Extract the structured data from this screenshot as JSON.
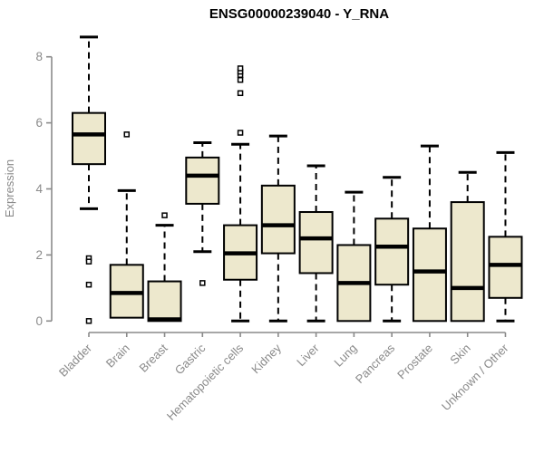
{
  "chart_data": {
    "type": "boxplot",
    "title": "ENSG00000239040 - Y_RNA",
    "ylabel": "Expression",
    "xlabel": "",
    "ylim": [
      0,
      8.7
    ],
    "yticks": [
      0,
      2,
      4,
      6,
      8
    ],
    "grid": false,
    "legend": "none",
    "colors": {
      "box_fill": "#EDE8CD",
      "box_stroke": "#000000",
      "median_color": "#000000",
      "whisker_color": "#000000",
      "outlier_stroke": "#000000",
      "axis_color": "#8A8A8A",
      "tick_label_color": "#8A8A8A",
      "title_color": "#000000",
      "background": "#FFFFFF"
    },
    "categories": [
      "Bladder",
      "Brain",
      "Breast",
      "Gastric",
      "Hematopoietic cells",
      "Kidney",
      "Liver",
      "Lung",
      "Pancreas",
      "Prostate",
      "Skin",
      "Unknown / Other"
    ],
    "series": [
      {
        "category": "Bladder",
        "whisker_low": 3.4,
        "q1": 4.75,
        "median": 5.65,
        "q3": 6.3,
        "whisker_high": 8.6,
        "outliers": [
          1.9,
          1.8,
          1.1,
          0.0
        ]
      },
      {
        "category": "Brain",
        "whisker_low": 0.1,
        "q1": 0.1,
        "median": 0.85,
        "q3": 1.7,
        "whisker_high": 3.95,
        "outliers": [
          5.65
        ]
      },
      {
        "category": "Breast",
        "whisker_low": 0.0,
        "q1": 0.0,
        "median": 0.05,
        "q3": 1.2,
        "whisker_high": 2.9,
        "outliers": [
          3.2
        ]
      },
      {
        "category": "Gastric",
        "whisker_low": 2.1,
        "q1": 3.55,
        "median": 4.4,
        "q3": 4.95,
        "whisker_high": 5.4,
        "outliers": [
          1.15
        ]
      },
      {
        "category": "Hematopoietic cells",
        "whisker_low": 0.0,
        "q1": 1.25,
        "median": 2.05,
        "q3": 2.9,
        "whisker_high": 5.35,
        "outliers": [
          5.7,
          6.9,
          7.3,
          7.45,
          7.55,
          7.65
        ]
      },
      {
        "category": "Kidney",
        "whisker_low": 0.0,
        "q1": 2.05,
        "median": 2.9,
        "q3": 4.1,
        "whisker_high": 5.6,
        "outliers": []
      },
      {
        "category": "Liver",
        "whisker_low": 0.0,
        "q1": 1.45,
        "median": 2.5,
        "q3": 3.3,
        "whisker_high": 4.7,
        "outliers": []
      },
      {
        "category": "Lung",
        "whisker_low": 0.0,
        "q1": 0.0,
        "median": 1.15,
        "q3": 2.3,
        "whisker_high": 3.9,
        "outliers": []
      },
      {
        "category": "Pancreas",
        "whisker_low": 0.0,
        "q1": 1.1,
        "median": 2.25,
        "q3": 3.1,
        "whisker_high": 4.35,
        "outliers": []
      },
      {
        "category": "Prostate",
        "whisker_low": 0.0,
        "q1": 0.0,
        "median": 1.5,
        "q3": 2.8,
        "whisker_high": 5.3,
        "outliers": []
      },
      {
        "category": "Skin",
        "whisker_low": 0.0,
        "q1": 0.0,
        "median": 1.0,
        "q3": 3.6,
        "whisker_high": 4.5,
        "outliers": []
      },
      {
        "category": "Unknown / Other",
        "whisker_low": 0.0,
        "q1": 0.7,
        "median": 1.7,
        "q3": 2.55,
        "whisker_high": 5.1,
        "outliers": []
      }
    ]
  }
}
